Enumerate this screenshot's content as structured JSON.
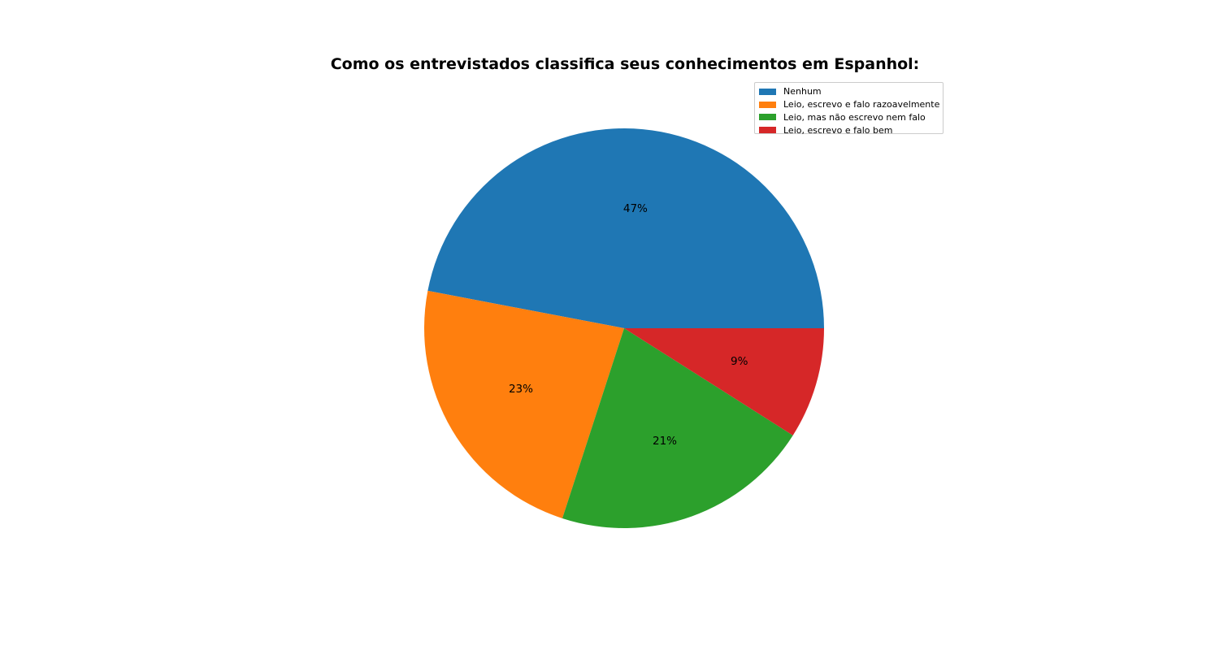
{
  "chart_data": {
    "type": "pie",
    "title": "Como os entrevistados classifica seus conhecimentos em Espanhol:",
    "categories": [
      "Nenhum",
      "Leio, escrevo e falo razoavelmente",
      "Leio, mas não escrevo nem falo",
      "Leio, escrevo e falo bem"
    ],
    "values": [
      47,
      23,
      21,
      9
    ],
    "labels": [
      "47%",
      "23%",
      "21%",
      "9%"
    ],
    "colors": [
      "#1f77b4",
      "#ff7f0e",
      "#2ca02c",
      "#d62728"
    ],
    "legend_position": "top-right"
  }
}
